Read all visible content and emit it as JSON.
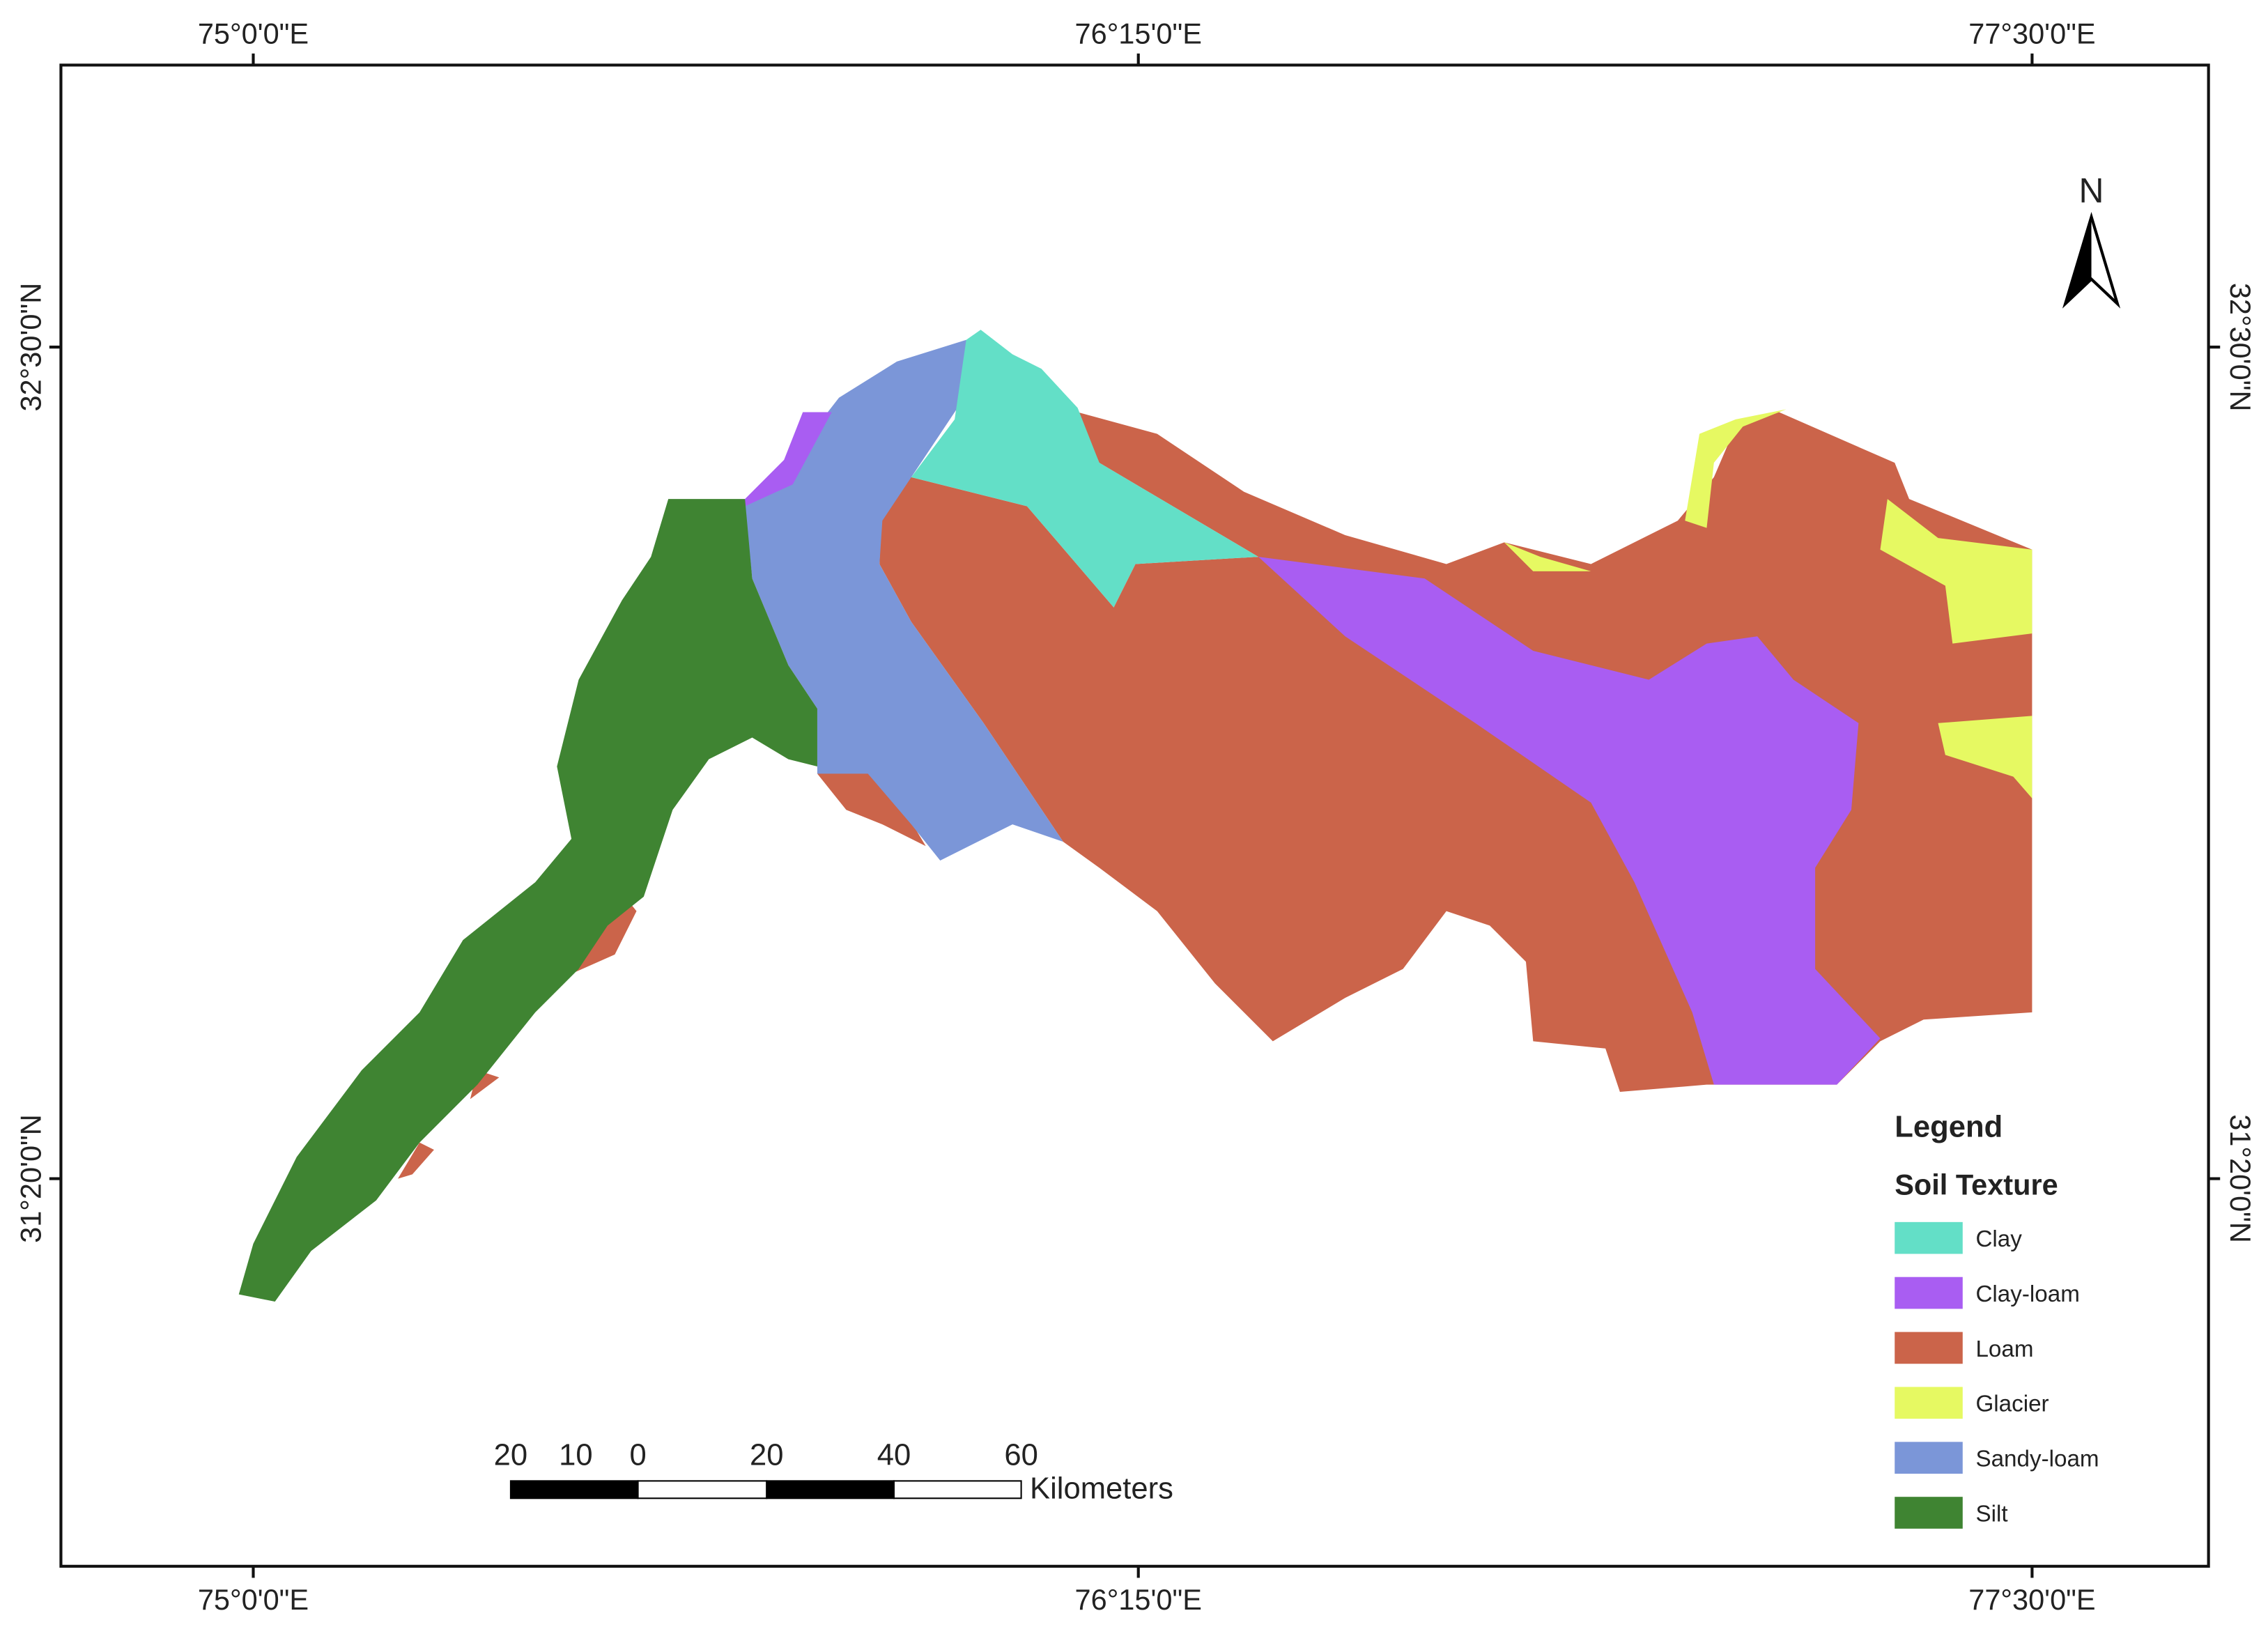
{
  "map": {
    "top_labels": [
      "75°0'0\"E",
      "76°15'0\"E",
      "77°30'0\"E"
    ],
    "bottom_labels": [
      "75°0'0\"E",
      "76°15'0\"E",
      "77°30'0\"E"
    ],
    "left_labels": [
      "32°30'0\"N",
      "31°20'0\"N"
    ],
    "right_labels": [
      "32°30'0\"N",
      "31°20'0\"N"
    ],
    "north": "N",
    "legend": {
      "title": "Legend",
      "subtitle": "Soil Texture",
      "items": [
        {
          "name": "Clay",
          "color": "#63dfc7"
        },
        {
          "name": "Clay-loam",
          "color": "#a95df2"
        },
        {
          "name": "Loam",
          "color": "#cb644a"
        },
        {
          "name": "Glacier",
          "color": "#e6f962"
        },
        {
          "name": "Sandy-loam",
          "color": "#7b96d8"
        },
        {
          "name": "Silt",
          "color": "#3f8432"
        }
      ]
    },
    "scale_bar": {
      "labels": [
        "20",
        "10",
        "0",
        "20",
        "40",
        "60"
      ],
      "unit": "Kilometers"
    }
  }
}
